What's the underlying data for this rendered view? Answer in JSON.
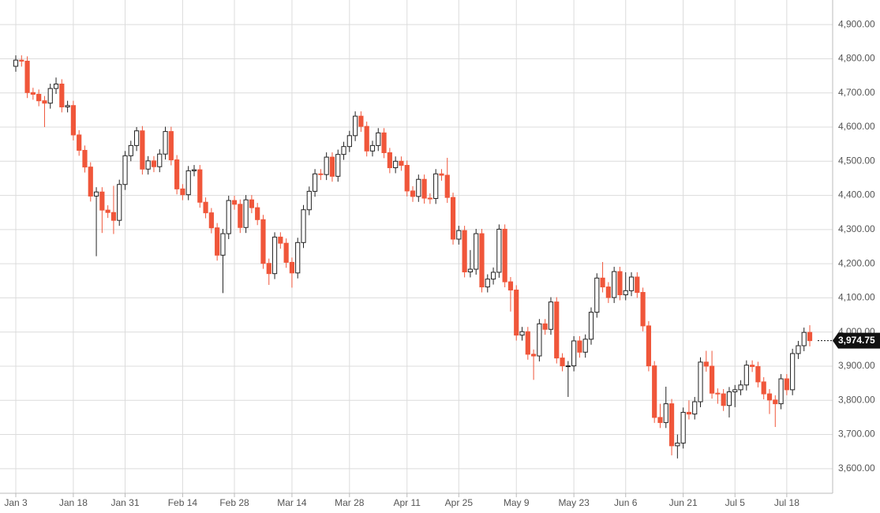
{
  "chart_data": {
    "type": "candlestick",
    "categories": [
      "Jan 3",
      null,
      null,
      null,
      null,
      null,
      null,
      null,
      null,
      null,
      "Jan 18",
      null,
      null,
      null,
      null,
      null,
      null,
      null,
      null,
      "Jan 31",
      null,
      null,
      null,
      null,
      null,
      null,
      null,
      null,
      null,
      "Feb 14",
      null,
      null,
      null,
      null,
      null,
      null,
      null,
      null,
      "Feb 28",
      null,
      null,
      null,
      null,
      null,
      null,
      null,
      null,
      null,
      "Mar 14",
      null,
      null,
      null,
      null,
      null,
      null,
      null,
      null,
      null,
      "Mar 28",
      null,
      null,
      null,
      null,
      null,
      null,
      null,
      null,
      null,
      "Apr 11",
      null,
      null,
      null,
      null,
      null,
      null,
      null,
      null,
      "Apr 25",
      null,
      null,
      null,
      null,
      null,
      null,
      null,
      null,
      null,
      "May 9",
      null,
      null,
      null,
      null,
      null,
      null,
      null,
      null,
      null,
      "May 23",
      null,
      null,
      null,
      null,
      null,
      null,
      null,
      null,
      "Jun 6",
      null,
      null,
      null,
      null,
      null,
      null,
      null,
      null,
      null,
      "Jun 21",
      null,
      null,
      null,
      null,
      null,
      null,
      null,
      null,
      "Jul 5",
      null,
      null,
      null,
      null,
      null,
      null,
      null,
      null,
      "Jul 18",
      null,
      null,
      null,
      null
    ],
    "open": [
      4778,
      4796,
      4793,
      4701,
      4696,
      4677,
      4670,
      4713,
      4726,
      4659,
      4663,
      4577,
      4532,
      4483,
      4398,
      4410,
      4357,
      4350,
      4327,
      4432,
      4516,
      4546,
      4589,
      4477,
      4501,
      4484,
      4521,
      4587,
      4504,
      4419,
      4402,
      4472,
      4475,
      4380,
      4349,
      4305,
      4225,
      4288,
      4385,
      4374,
      4306,
      4387,
      4364,
      4329,
      4201,
      4171,
      4278,
      4260,
      4204,
      4173,
      4262,
      4358,
      4412,
      4463,
      4461,
      4512,
      4456,
      4520,
      4543,
      4575,
      4632,
      4602,
      4530,
      4546,
      4583,
      4525,
      4481,
      4500,
      4488,
      4413,
      4397,
      4447,
      4392,
      4391,
      4463,
      4459,
      4394,
      4272,
      4297,
      4176,
      4184,
      4288,
      4132,
      4155,
      4175,
      4301,
      4147,
      4123,
      3991,
      4001,
      3935,
      3930,
      4024,
      4008,
      4088,
      3924,
      3901,
      3901,
      3974,
      3941,
      3979,
      4058,
      4158,
      4132,
      4101,
      4177,
      4109,
      4121,
      4161,
      4116,
      4018,
      3901,
      3750,
      3735,
      3790,
      3667,
      3675,
      3765,
      3760,
      3796,
      3912,
      3900,
      3821,
      3819,
      3785,
      3825,
      3831,
      3845,
      3903,
      3899,
      3854,
      3819,
      3801,
      3790,
      3863,
      3831,
      3937,
      3960,
      3999
    ],
    "high": [
      4810,
      4810,
      4807,
      4715,
      4710,
      4691,
      4727,
      4745,
      4740,
      4677,
      4677,
      4591,
      4546,
      4497,
      4424,
      4424,
      4371,
      4428,
      4446,
      4530,
      4560,
      4600,
      4603,
      4515,
      4515,
      4535,
      4601,
      4601,
      4518,
      4433,
      4486,
      4489,
      4489,
      4394,
      4363,
      4319,
      4302,
      4399,
      4399,
      4388,
      4401,
      4401,
      4378,
      4343,
      4215,
      4292,
      4292,
      4274,
      4218,
      4276,
      4372,
      4426,
      4477,
      4477,
      4526,
      4526,
      4534,
      4557,
      4589,
      4646,
      4646,
      4616,
      4560,
      4597,
      4597,
      4539,
      4514,
      4514,
      4502,
      4427,
      4461,
      4461,
      4406,
      4477,
      4477,
      4510,
      4408,
      4311,
      4311,
      4240,
      4302,
      4302,
      4169,
      4189,
      4315,
      4315,
      4161,
      4137,
      4015,
      4015,
      3949,
      4038,
      4038,
      4102,
      4102,
      3938,
      3915,
      3988,
      3988,
      3993,
      4072,
      4172,
      4205,
      4146,
      4191,
      4191,
      4175,
      4175,
      4175,
      4130,
      4032,
      3915,
      3790,
      3840,
      3804,
      3700,
      3779,
      3800,
      3810,
      3926,
      3945,
      3945,
      3835,
      3833,
      3839,
      3845,
      3859,
      3917,
      3917,
      3913,
      3868,
      3833,
      3815,
      3877,
      3877,
      3951,
      3974,
      4013,
      4020
    ],
    "low": [
      4762,
      4777,
      4685,
      4680,
      4661,
      4600,
      4654,
      4697,
      4643,
      4643,
      4561,
      4516,
      4467,
      4382,
      4222,
      4290,
      4334,
      4287,
      4311,
      4416,
      4500,
      4530,
      4461,
      4461,
      4468,
      4468,
      4505,
      4488,
      4403,
      4386,
      4386,
      4456,
      4364,
      4333,
      4289,
      4209,
      4114,
      4272,
      4358,
      4290,
      4290,
      4348,
      4313,
      4185,
      4138,
      4155,
      4244,
      4188,
      4130,
      4157,
      4246,
      4342,
      4396,
      4445,
      4445,
      4440,
      4440,
      4504,
      4527,
      4559,
      4586,
      4514,
      4514,
      4530,
      4509,
      4465,
      4465,
      4472,
      4397,
      4381,
      4381,
      4376,
      4375,
      4375,
      4443,
      4378,
      4256,
      4256,
      4160,
      4160,
      4168,
      4116,
      4116,
      4139,
      4159,
      4131,
      4060,
      3975,
      3975,
      3919,
      3860,
      3914,
      3992,
      3992,
      3908,
      3885,
      3810,
      3885,
      3925,
      3925,
      3963,
      4042,
      4116,
      4085,
      4085,
      4093,
      4093,
      4105,
      4100,
      4002,
      3885,
      3734,
      3719,
      3719,
      3639,
      3630,
      3659,
      3744,
      3744,
      3780,
      3884,
      3805,
      3790,
      3769,
      3750,
      3780,
      3815,
      3829,
      3883,
      3838,
      3803,
      3760,
      3722,
      3774,
      3815,
      3815,
      3921,
      3944,
      3958
    ],
    "close": [
      4796,
      4793,
      4701,
      4696,
      4677,
      4670,
      4713,
      4726,
      4659,
      4663,
      4577,
      4532,
      4483,
      4398,
      4410,
      4357,
      4350,
      4327,
      4432,
      4516,
      4546,
      4589,
      4477,
      4501,
      4484,
      4521,
      4587,
      4504,
      4419,
      4402,
      4472,
      4475,
      4380,
      4349,
      4305,
      4225,
      4288,
      4385,
      4374,
      4306,
      4387,
      4364,
      4329,
      4201,
      4171,
      4278,
      4260,
      4204,
      4173,
      4262,
      4358,
      4412,
      4463,
      4461,
      4512,
      4456,
      4520,
      4543,
      4575,
      4632,
      4602,
      4530,
      4546,
      4583,
      4525,
      4481,
      4500,
      4488,
      4413,
      4397,
      4447,
      4392,
      4391,
      4463,
      4459,
      4394,
      4272,
      4297,
      4176,
      4184,
      4288,
      4132,
      4155,
      4175,
      4301,
      4147,
      4123,
      3991,
      4001,
      3935,
      3930,
      4024,
      4008,
      4088,
      3924,
      3901,
      3901,
      3974,
      3941,
      3979,
      4058,
      4158,
      4132,
      4101,
      4177,
      4109,
      4121,
      4161,
      4116,
      4018,
      3901,
      3750,
      3735,
      3790,
      3667,
      3675,
      3765,
      3760,
      3796,
      3912,
      3900,
      3821,
      3819,
      3785,
      3825,
      3831,
      3845,
      3903,
      3899,
      3854,
      3819,
      3801,
      3790,
      3863,
      3831,
      3937,
      3960,
      3999,
      3974.75
    ],
    "up_color": "#ffffff",
    "down_color": "#f0563a",
    "current_price": {
      "value": 3974.75,
      "label": "3,974.75"
    },
    "ylim": [
      3528,
      4972
    ],
    "yticks": [
      {
        "value": 3600,
        "label": "3,600.00"
      },
      {
        "value": 3700,
        "label": "3,700.00"
      },
      {
        "value": 3800,
        "label": "3,800.00"
      },
      {
        "value": 3900,
        "label": "3,900.00"
      },
      {
        "value": 4000,
        "label": "4,000.00"
      },
      {
        "value": 4100,
        "label": "4,100.00"
      },
      {
        "value": 4200,
        "label": "4,200.00"
      },
      {
        "value": 4300,
        "label": "4,300.00"
      },
      {
        "value": 4400,
        "label": "4,400.00"
      },
      {
        "value": 4500,
        "label": "4,500.00"
      },
      {
        "value": 4600,
        "label": "4,600.00"
      },
      {
        "value": 4700,
        "label": "4,700.00"
      },
      {
        "value": 4800,
        "label": "4,800.00"
      },
      {
        "value": 4900,
        "label": "4,900.00"
      }
    ],
    "grid": true
  }
}
